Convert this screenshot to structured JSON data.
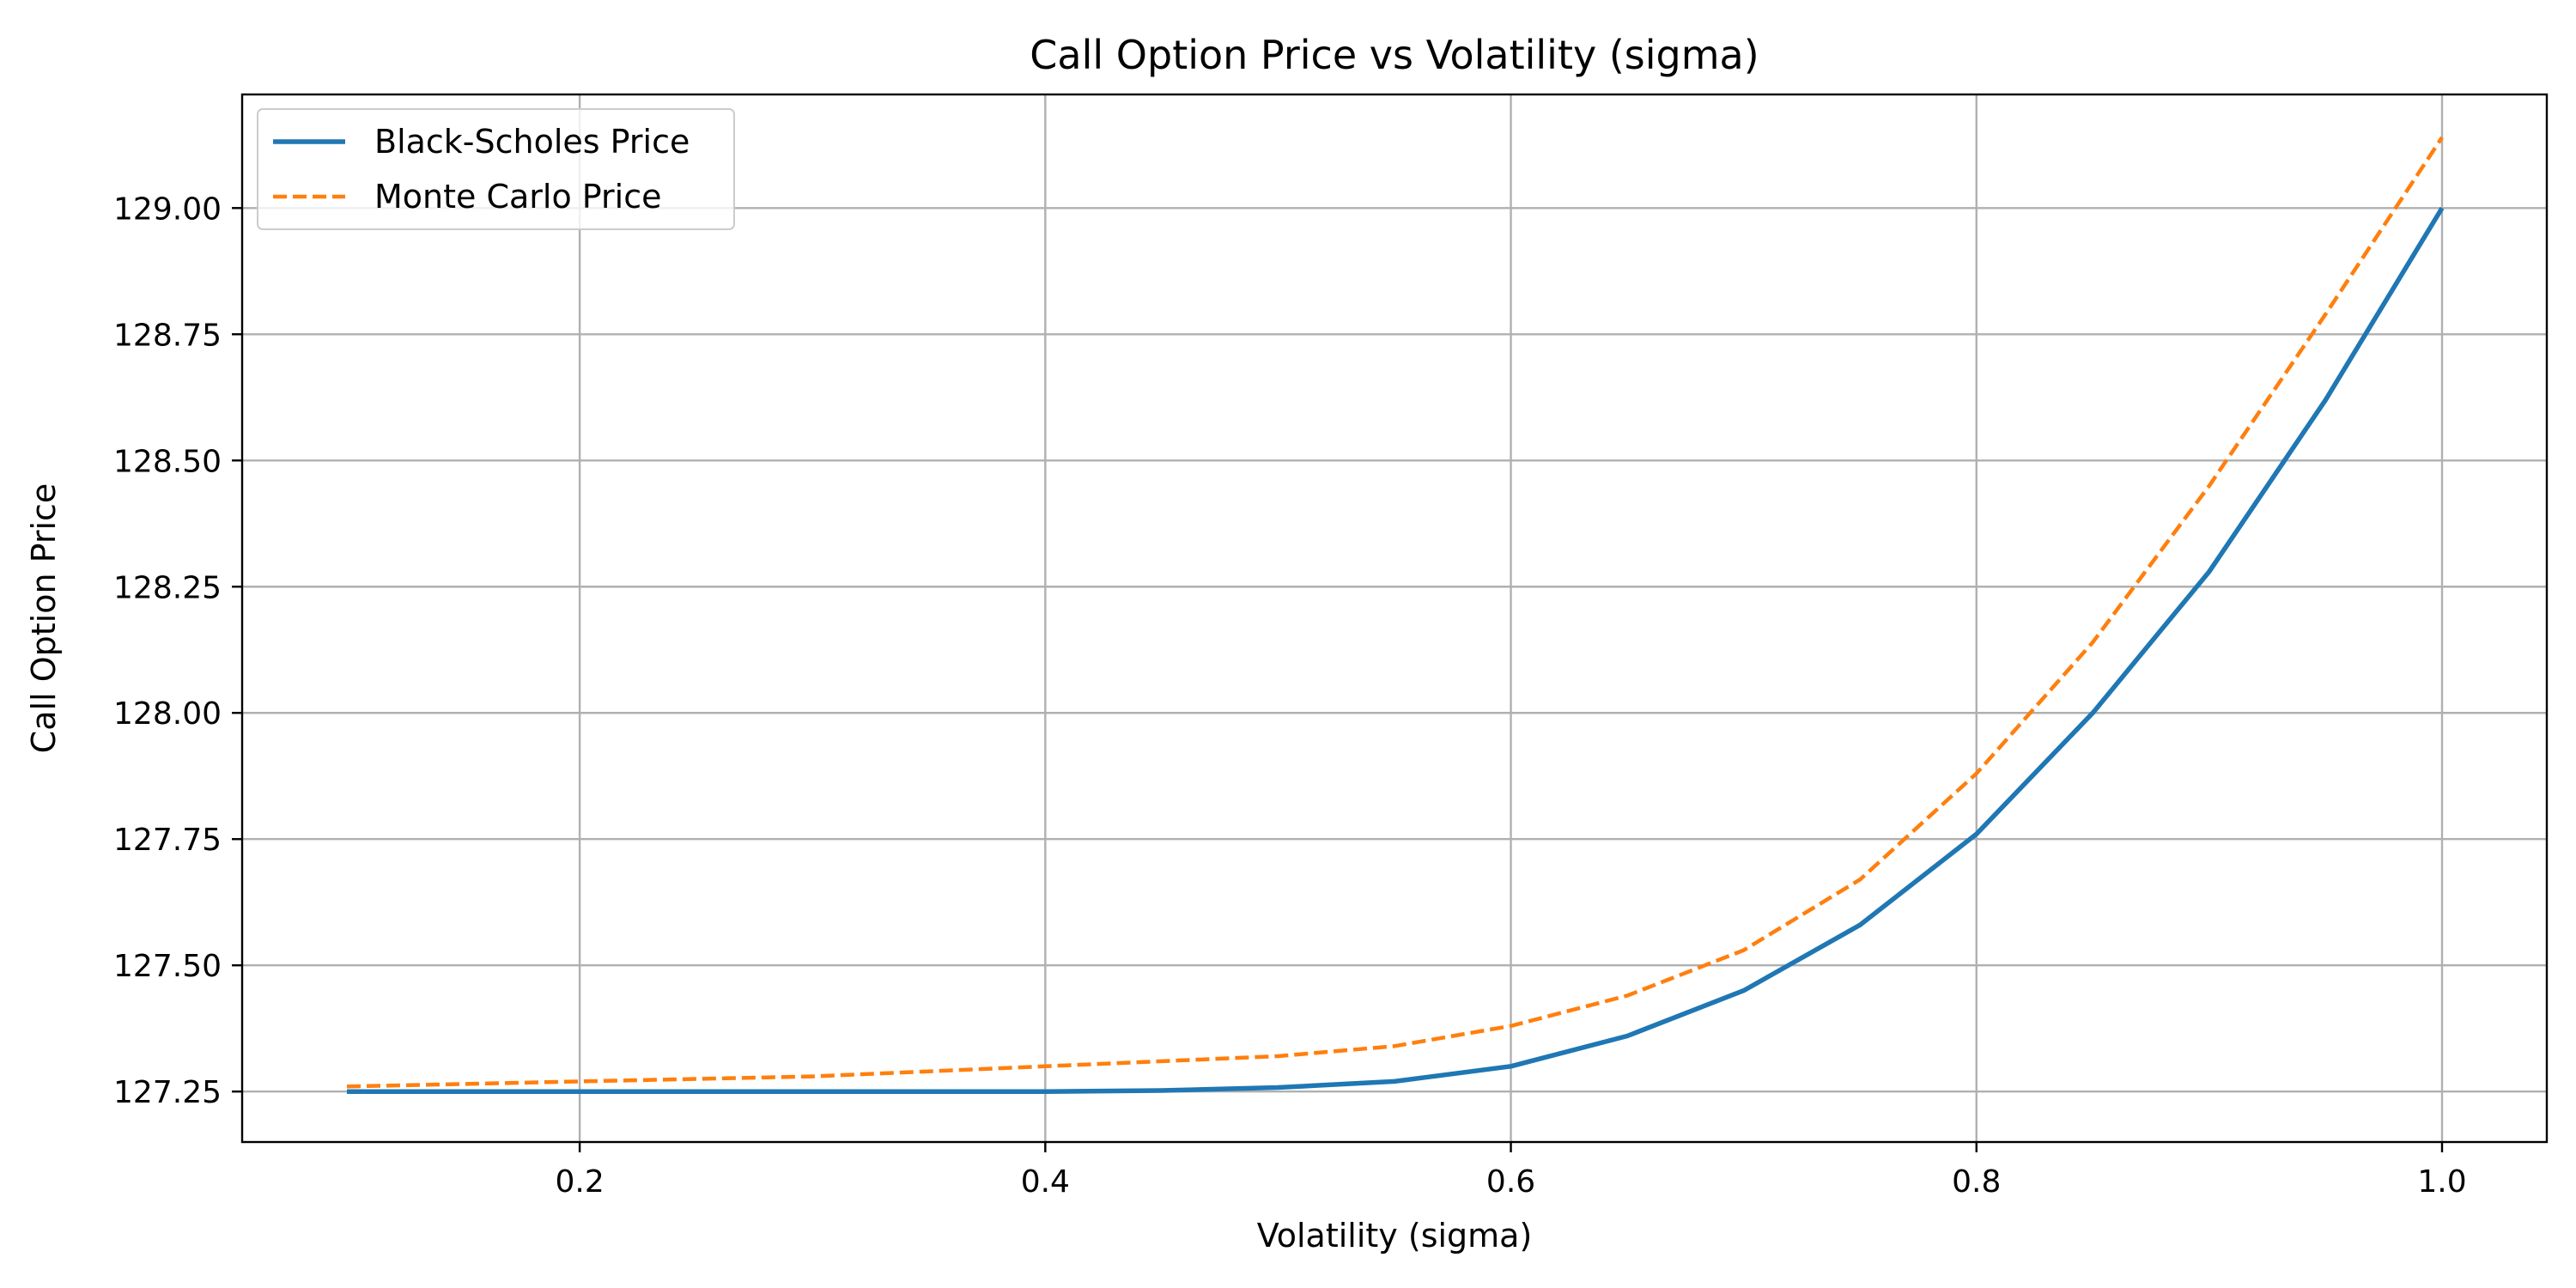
{
  "chart_data": {
    "type": "line",
    "title": "Call Option Price vs Volatility (sigma)",
    "xlabel": "Volatility (sigma)",
    "ylabel": "Call Option Price",
    "xlim": [
      0.055,
      1.045
    ],
    "ylim": [
      127.15,
      129.225
    ],
    "xticks": [
      0.2,
      0.4,
      0.6,
      0.8,
      1.0
    ],
    "xtick_labels": [
      "0.2",
      "0.4",
      "0.6",
      "0.8",
      "1.0"
    ],
    "yticks": [
      127.25,
      127.5,
      127.75,
      128.0,
      128.25,
      128.5,
      128.75,
      129.0
    ],
    "ytick_labels": [
      "127.25",
      "127.50",
      "127.75",
      "128.00",
      "128.25",
      "128.50",
      "128.75",
      "129.00"
    ],
    "grid": true,
    "legend_position": "top-left",
    "x": [
      0.1,
      0.15,
      0.2,
      0.25,
      0.3,
      0.35,
      0.4,
      0.45,
      0.5,
      0.55,
      0.6,
      0.65,
      0.7,
      0.75,
      0.8,
      0.85,
      0.9,
      0.95,
      1.0
    ],
    "series": [
      {
        "name": "Black-Scholes Price",
        "color": "#1f77b4",
        "style": "solid",
        "values": [
          127.25,
          127.25,
          127.25,
          127.25,
          127.25,
          127.25,
          127.25,
          127.252,
          127.258,
          127.27,
          127.3,
          127.36,
          127.45,
          127.58,
          127.76,
          128.0,
          128.28,
          128.62,
          129.0
        ]
      },
      {
        "name": "Monte Carlo Price",
        "color": "#ff7f0e",
        "style": "dashed",
        "values": [
          127.26,
          127.265,
          127.27,
          127.275,
          127.28,
          127.29,
          127.3,
          127.31,
          127.32,
          127.34,
          127.38,
          127.44,
          127.53,
          127.67,
          127.88,
          128.14,
          128.45,
          128.79,
          129.14
        ]
      }
    ]
  }
}
